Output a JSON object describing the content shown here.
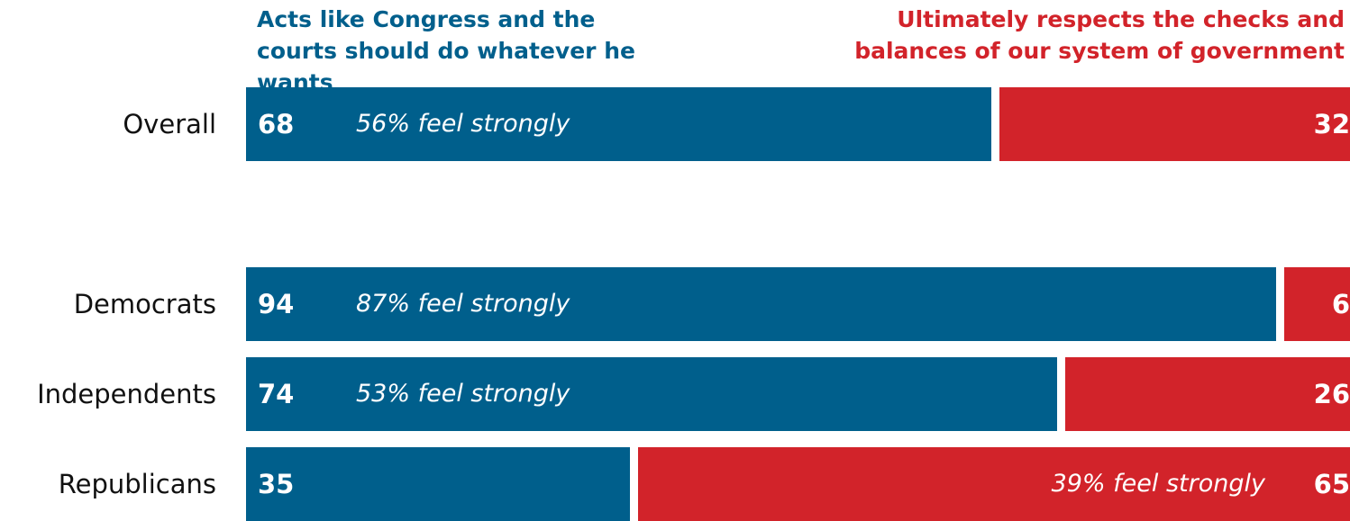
{
  "chart_data": {
    "type": "stacked-bar-horizontal",
    "categories": [
      "Overall",
      "Democrats",
      "Independents",
      "Republicans"
    ],
    "xlim": [
      0,
      100
    ],
    "series": [
      {
        "name": "Acts like Congress and the courts should do whatever he wants",
        "color": "#005f8c",
        "values": [
          68,
          94,
          74,
          35
        ],
        "notes": [
          "56% feel strongly",
          "87% feel strongly",
          "53% feel strongly",
          null
        ]
      },
      {
        "name": "Ultimately respects the checks and balances of our system of government",
        "color": "#d2232a",
        "values": [
          32,
          6,
          26,
          65
        ],
        "notes": [
          null,
          null,
          null,
          "39% feel strongly"
        ]
      }
    ]
  }
}
